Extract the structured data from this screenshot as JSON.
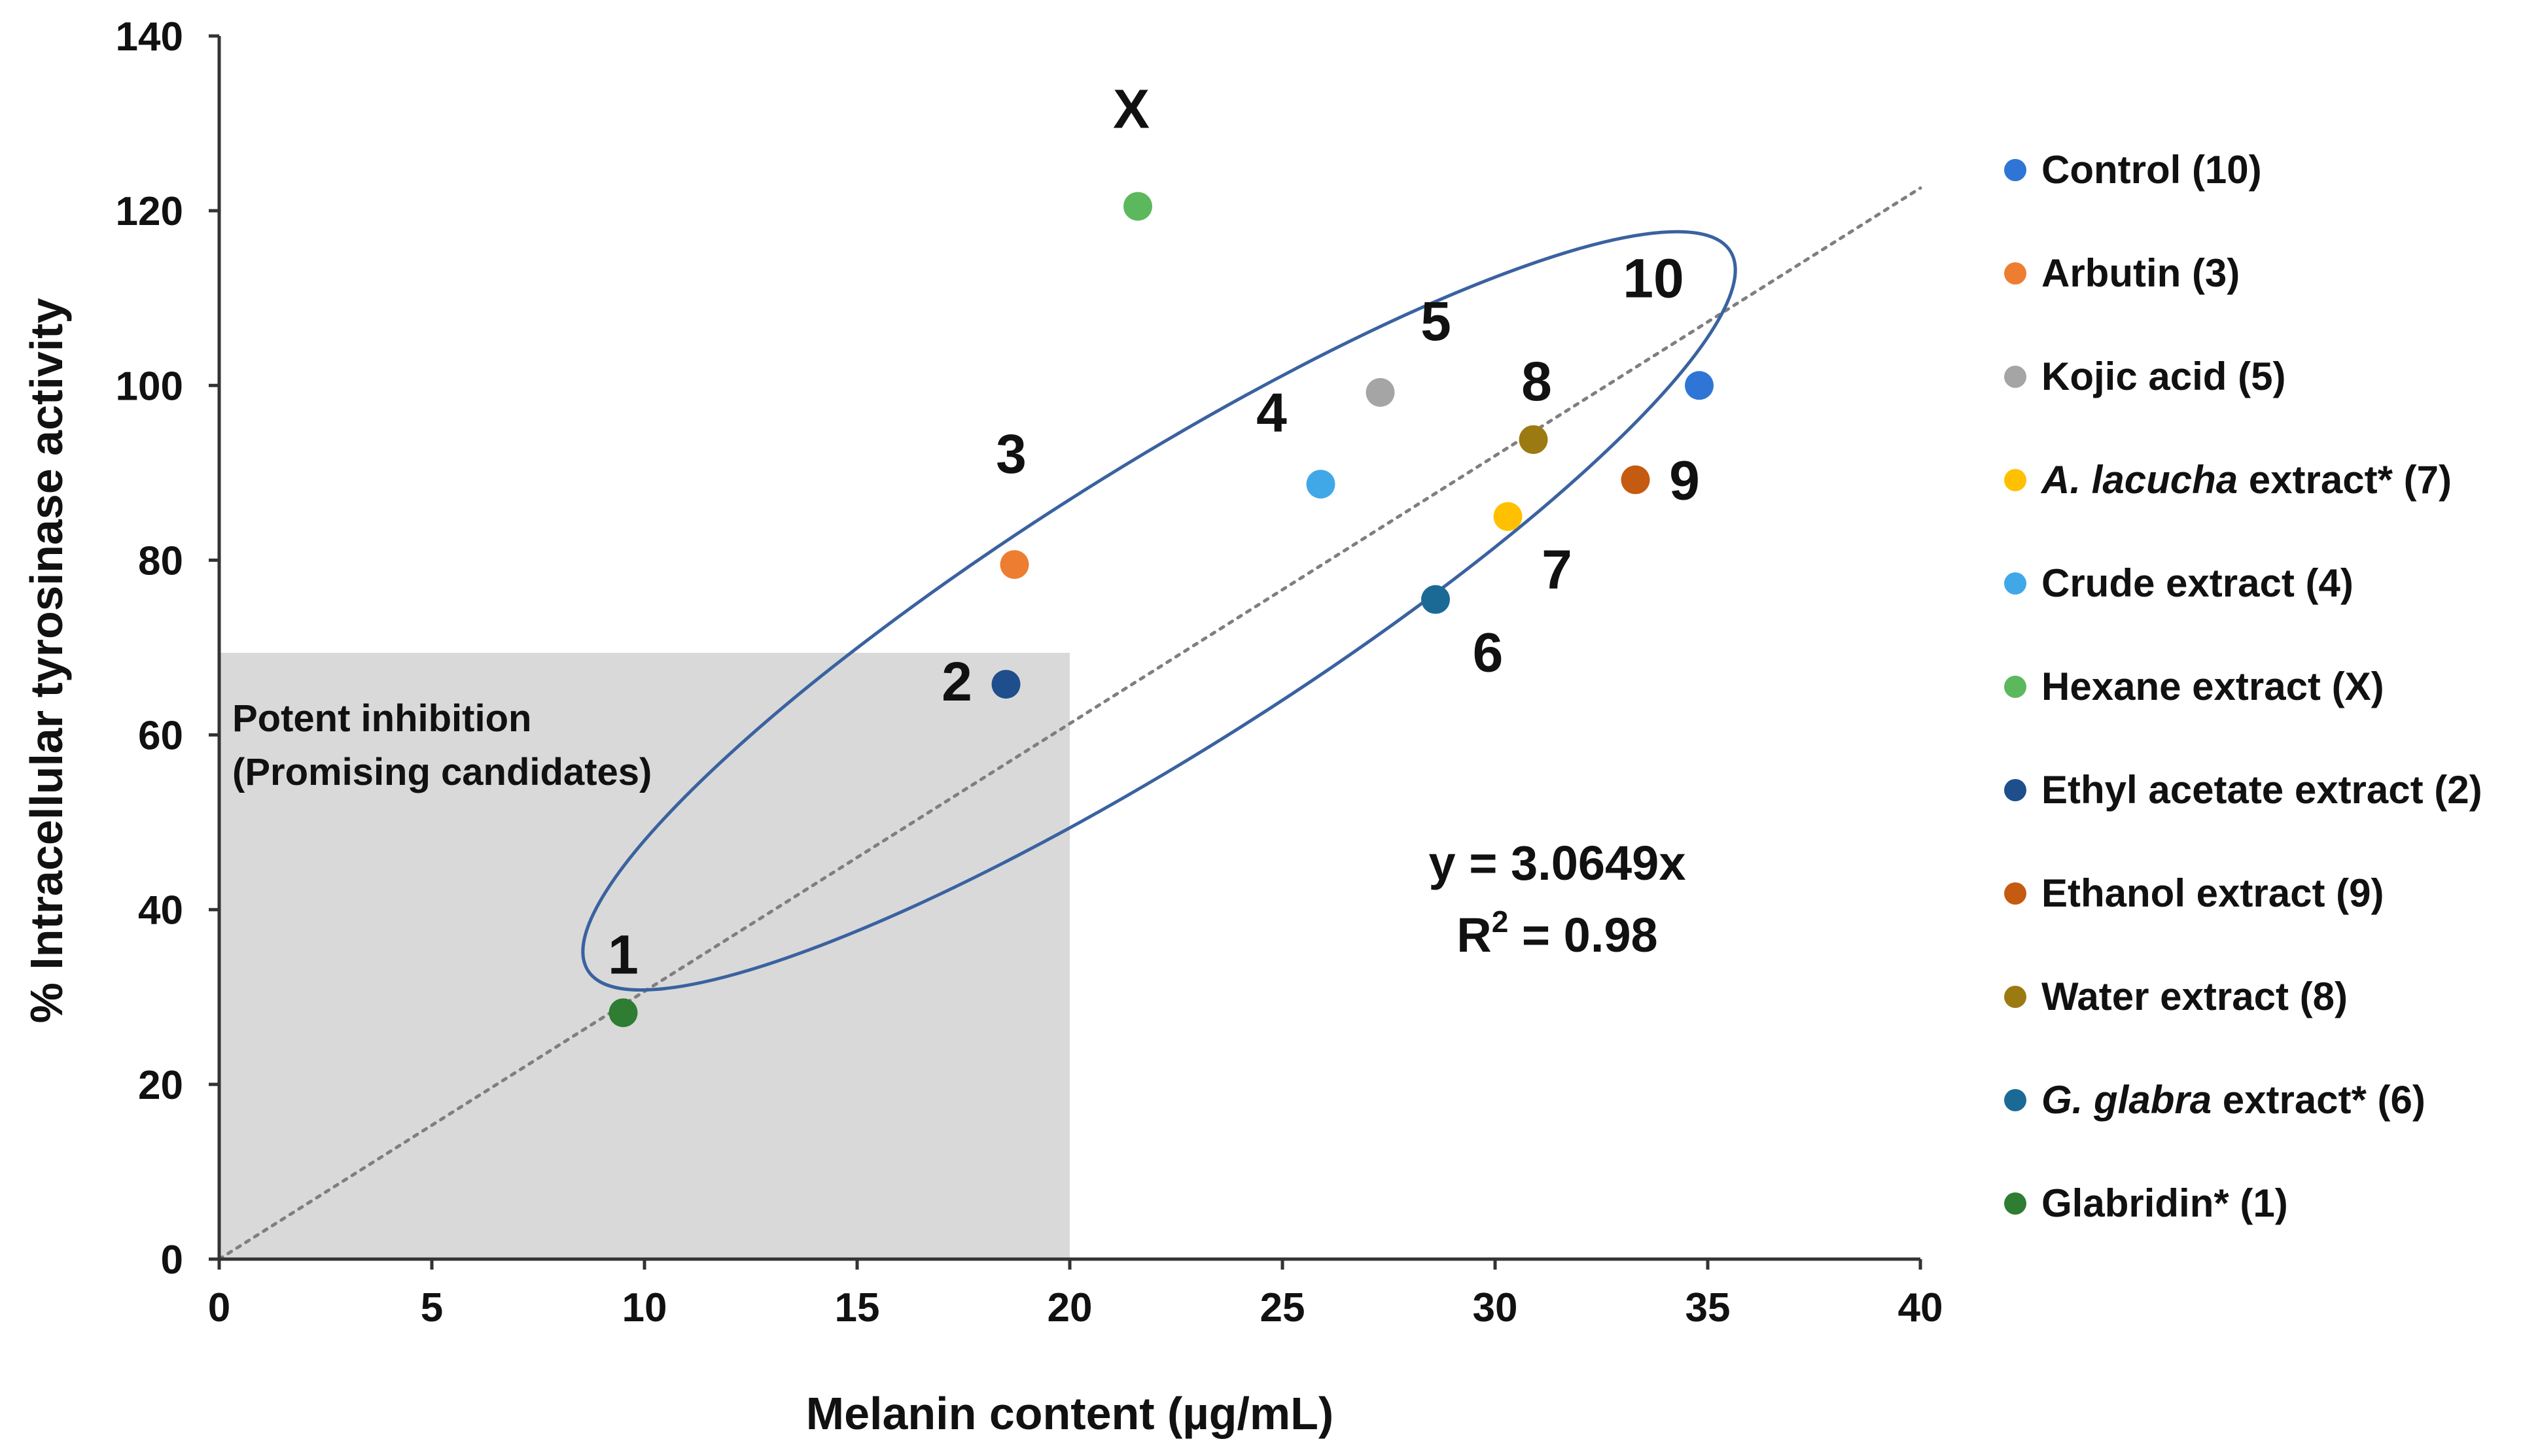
{
  "chart_data": {
    "type": "scatter",
    "title": "",
    "xlabel": "Melanin content (µg/mL)",
    "ylabel": "% Intracellular tyrosinase activity",
    "xlim": [
      0,
      40
    ],
    "ylim": [
      0,
      140
    ],
    "xticks": [
      0,
      5,
      10,
      15,
      20,
      25,
      30,
      35,
      40
    ],
    "yticks": [
      0,
      20,
      40,
      60,
      80,
      100,
      120,
      140
    ],
    "grid": false,
    "legend_position": "right",
    "series": [
      {
        "name": "Control (10)",
        "name_main": "Control (10)",
        "name_italic": "",
        "label": "10",
        "color": "#2E75D6",
        "x": 34.8,
        "y": 100
      },
      {
        "name": "Arbutin (3)",
        "name_main": "Arbutin (3)",
        "name_italic": "",
        "label": "3",
        "color": "#ED7D31",
        "x": 18.7,
        "y": 79.5
      },
      {
        "name": "Kojic acid (5)",
        "name_main": "Kojic acid (5)",
        "name_italic": "",
        "label": "5",
        "color": "#A5A5A5",
        "x": 27.3,
        "y": 99.2
      },
      {
        "name": "A. lacucha extract* (7)",
        "name_main": " extract* (7)",
        "name_italic": "A. lacucha",
        "label": "7",
        "color": "#FFC000",
        "x": 30.3,
        "y": 85
      },
      {
        "name": "Crude extract (4)",
        "name_main": "Crude extract (4)",
        "name_italic": "",
        "label": "4",
        "color": "#41A8E8",
        "x": 25.9,
        "y": 88.7
      },
      {
        "name": "Hexane extract (X)",
        "name_main": "Hexane extract (X)",
        "name_italic": "",
        "label": "X",
        "color": "#5CB85C",
        "x": 21.6,
        "y": 120.5
      },
      {
        "name": "Ethyl acetate extract (2)",
        "name_main": "Ethyl acetate extract (2)",
        "name_italic": "",
        "label": "2",
        "color": "#1F4E8C",
        "x": 18.5,
        "y": 65.8
      },
      {
        "name": "Ethanol extract (9)",
        "name_main": "Ethanol extract (9)",
        "name_italic": "",
        "label": "9",
        "color": "#C55A11",
        "x": 33.3,
        "y": 89.2
      },
      {
        "name": "Water extract (8)",
        "name_main": "Water extract (8)",
        "name_italic": "",
        "label": "8",
        "color": "#9C7A12",
        "x": 30.9,
        "y": 93.8
      },
      {
        "name": "G. glabra extract* (6)",
        "name_main": " extract* (6)",
        "name_italic": "G. glabra",
        "label": "6",
        "color": "#1B6A96",
        "x": 28.6,
        "y": 75.5
      },
      {
        "name": "Glabridin* (1)",
        "name_main": "Glabridin* (1)",
        "name_italic": "",
        "label": "1",
        "color": "#2E7D32",
        "x": 9.5,
        "y": 28.2
      }
    ],
    "trendline": {
      "slope": 3.0649,
      "intercept": 0,
      "x_range": [
        0,
        40
      ],
      "style": "dotted"
    },
    "annotations": {
      "equation": "y = 3.0649x",
      "r2_prefix": "R",
      "r2_sup": "2",
      "r2_value": " = 0.98",
      "region_line1": "Potent inhibition",
      "region_line2": "(Promising candidates)"
    },
    "shaded_region": {
      "x": [
        0,
        20
      ],
      "y": [
        0,
        69.4
      ],
      "color": "#d9d9d9"
    },
    "ellipse": {
      "center": [
        22.1,
        74.2
      ],
      "half_axis_along_trend": 43.3,
      "half_axis_across_trend": 9.1,
      "color": "#3a62a0"
    }
  }
}
